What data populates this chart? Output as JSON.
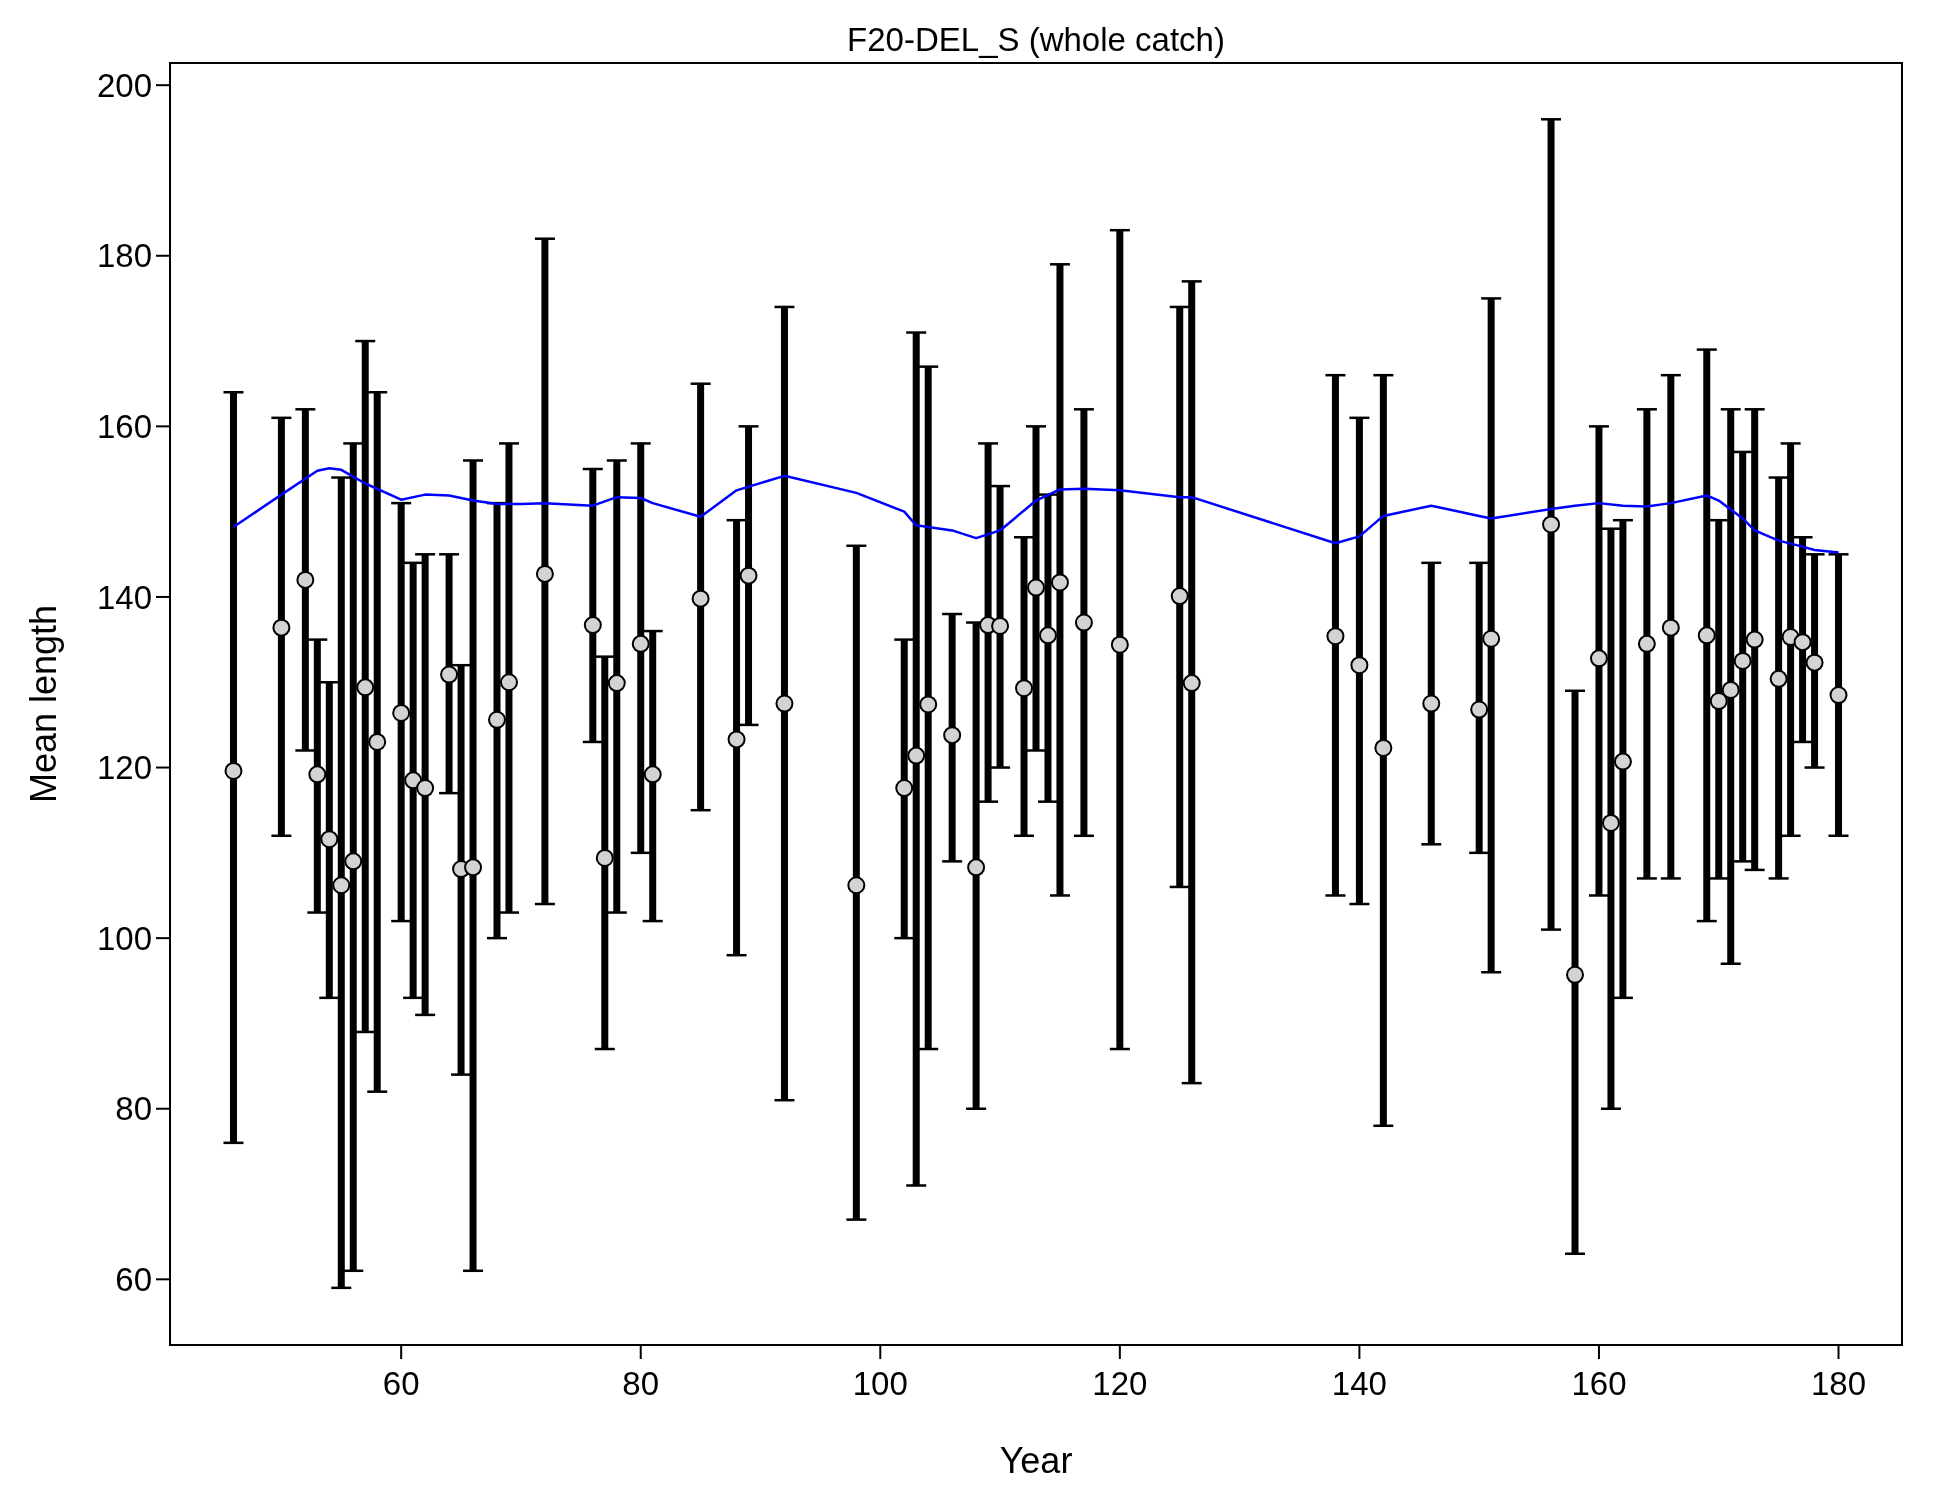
{
  "chart_data": {
    "type": "scatter",
    "title": "F20-DEL_S (whole catch)",
    "xlabel": "Year",
    "ylabel": "Mean length",
    "xlim": [
      40.7,
      185.3
    ],
    "ylim": [
      52.3,
      202.6
    ],
    "xticks": [
      60,
      80,
      100,
      120,
      140,
      160,
      180
    ],
    "yticks": [
      60,
      80,
      100,
      120,
      140,
      160,
      180,
      200
    ],
    "grid": false,
    "marker": "circle",
    "series": [
      {
        "color": "#d3d3d3",
        "x": [
          46,
          50,
          52,
          53,
          54,
          55,
          56,
          57,
          58,
          60,
          61,
          62,
          64,
          65,
          66,
          68,
          69,
          72,
          76,
          77,
          78,
          80,
          81,
          85,
          88,
          89,
          92,
          98,
          102,
          103,
          104,
          106,
          108,
          109,
          110,
          112,
          113,
          114,
          115,
          117,
          120,
          125,
          126,
          138,
          140,
          142,
          146,
          150,
          151,
          156,
          158,
          160,
          161,
          162,
          164,
          166,
          169,
          170,
          171,
          172,
          173,
          175,
          176,
          177,
          178,
          180
        ],
        "values": [
          119.6,
          136.4,
          142.0,
          119.2,
          111.6,
          106.2,
          109.0,
          129.4,
          123.0,
          126.4,
          118.5,
          117.6,
          130.9,
          108.1,
          108.3,
          125.6,
          130.0,
          142.7,
          136.7,
          109.4,
          129.9,
          134.5,
          119.2,
          139.8,
          123.3,
          142.5,
          127.5,
          106.2,
          117.6,
          121.4,
          127.4,
          123.8,
          108.3,
          136.7,
          136.6,
          129.3,
          141.1,
          135.5,
          141.7,
          137.0,
          134.4,
          140.1,
          129.9,
          135.4,
          132.0,
          122.3,
          127.5,
          126.8,
          135.1,
          148.5,
          95.7,
          132.8,
          113.5,
          120.7,
          134.5,
          136.4,
          135.5,
          127.8,
          129.1,
          132.5,
          135.0,
          130.4,
          135.3,
          134.7,
          132.3,
          128.5
        ],
        "errors": [
          [
            76,
            164
          ],
          [
            112,
            161
          ],
          [
            122,
            162
          ],
          [
            103,
            135
          ],
          [
            93,
            130
          ],
          [
            59,
            154
          ],
          [
            61,
            158
          ],
          [
            89,
            170
          ],
          [
            82,
            164
          ],
          [
            102,
            151
          ],
          [
            93,
            144
          ],
          [
            91,
            145
          ],
          [
            117,
            145
          ],
          [
            84,
            132
          ],
          [
            61,
            156
          ],
          [
            100,
            151
          ],
          [
            103,
            158
          ],
          [
            104,
            182
          ],
          [
            123,
            155
          ],
          [
            87,
            133
          ],
          [
            103,
            156
          ],
          [
            110,
            158
          ],
          [
            102,
            136
          ],
          [
            115,
            165
          ],
          [
            98,
            149
          ],
          [
            125,
            160
          ],
          [
            81,
            174
          ],
          [
            67,
            146
          ],
          [
            100,
            135
          ],
          [
            71,
            171
          ],
          [
            87,
            167
          ],
          [
            109,
            138
          ],
          [
            80,
            137
          ],
          [
            116,
            158
          ],
          [
            120,
            153
          ],
          [
            112,
            147
          ],
          [
            122,
            160
          ],
          [
            116,
            152
          ],
          [
            105,
            179
          ],
          [
            112,
            162
          ],
          [
            87,
            183
          ],
          [
            106,
            174
          ],
          [
            83,
            177
          ],
          [
            105,
            166
          ],
          [
            104,
            161
          ],
          [
            78,
            166
          ],
          [
            111,
            144
          ],
          [
            110,
            144
          ],
          [
            96,
            175
          ],
          [
            101,
            196
          ],
          [
            63,
            129
          ],
          [
            105,
            160
          ],
          [
            80,
            148
          ],
          [
            93,
            149
          ],
          [
            107,
            162
          ],
          [
            107,
            166
          ],
          [
            102,
            169
          ],
          [
            107,
            149
          ],
          [
            97,
            162
          ],
          [
            109,
            157
          ],
          [
            108,
            162
          ],
          [
            107,
            154
          ],
          [
            112,
            158
          ],
          [
            123,
            147
          ],
          [
            120,
            145
          ],
          [
            112,
            145
          ]
        ]
      },
      {
        "type": "line",
        "color": "#0000ff",
        "marker": "none",
        "x": [
          46,
          50,
          53,
          54,
          55,
          57,
          60,
          62,
          64,
          66,
          68,
          70,
          72,
          76,
          78,
          80,
          81,
          85,
          88,
          92,
          98,
          102,
          103,
          106,
          108,
          110,
          113,
          115,
          117,
          120,
          125,
          126,
          138,
          140,
          142,
          146,
          150,
          151,
          156,
          158,
          160,
          162,
          164,
          166,
          169,
          170,
          172,
          173,
          175,
          177,
          178,
          180
        ],
        "values": [
          148.2,
          152,
          154.8,
          155.1,
          154.9,
          153.3,
          151.4,
          152,
          151.9,
          151.3,
          150.9,
          150.9,
          151,
          150.7,
          151.7,
          151.6,
          151,
          149.4,
          152.5,
          154.2,
          152.2,
          150,
          148.4,
          147.8,
          146.9,
          147.8,
          151.3,
          152.6,
          152.7,
          152.5,
          151.7,
          151.7,
          146.3,
          147.1,
          149.5,
          150.7,
          149.5,
          149.2,
          150.3,
          150.7,
          151,
          150.7,
          150.6,
          151,
          151.9,
          151.3,
          149.2,
          147.8,
          146.6,
          145.9,
          145.5,
          145.2
        ]
      }
    ]
  }
}
